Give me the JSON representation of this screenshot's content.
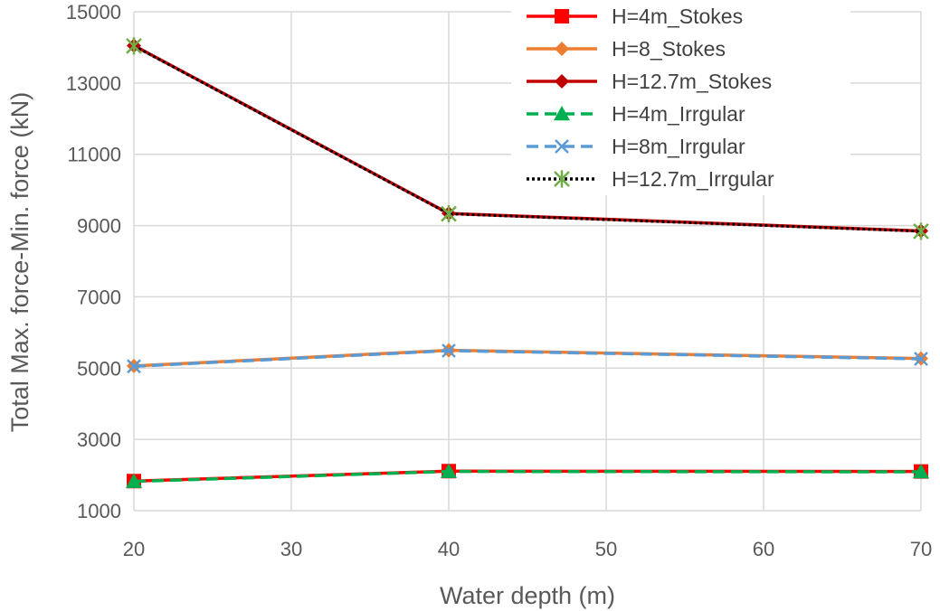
{
  "chart_data": {
    "type": "line",
    "xlabel": "Water depth (m)",
    "ylabel": "Total Max. force-Min. force (kN)",
    "xlim": [
      20,
      70
    ],
    "ylim": [
      1000,
      15000
    ],
    "x_ticks": [
      20,
      30,
      40,
      50,
      60,
      70
    ],
    "y_ticks": [
      1000,
      3000,
      5000,
      7000,
      9000,
      11000,
      13000,
      15000
    ],
    "grid": true,
    "legend_position": "top-right",
    "x": [
      20,
      40,
      70
    ],
    "series": [
      {
        "name": "H=4m_Stokes",
        "values": [
          1830,
          2110,
          2100
        ],
        "color": "#ff0000",
        "dash": "solid",
        "marker": "square"
      },
      {
        "name": "H=8_Stokes",
        "values": [
          5060,
          5500,
          5270
        ],
        "color": "#ed7d31",
        "dash": "solid",
        "marker": "diamond"
      },
      {
        "name": "H=12.7m_Stokes",
        "values": [
          14050,
          9340,
          8850
        ],
        "color": "#c00000",
        "dash": "solid",
        "marker": "diamond"
      },
      {
        "name": "H=4m_Irrgular",
        "values": [
          1820,
          2100,
          2090
        ],
        "color": "#00b050",
        "dash": "dash",
        "marker": "triangle"
      },
      {
        "name": "H=8m_Irrgular",
        "values": [
          5050,
          5490,
          5260
        ],
        "color": "#5b9bd5",
        "dash": "dash",
        "marker": "x"
      },
      {
        "name": "H=12.7m_Irrgular",
        "values": [
          14040,
          9330,
          8840
        ],
        "color": "#000000",
        "dash": "dot",
        "marker": "star",
        "marker_color": "#70ad47"
      }
    ]
  }
}
